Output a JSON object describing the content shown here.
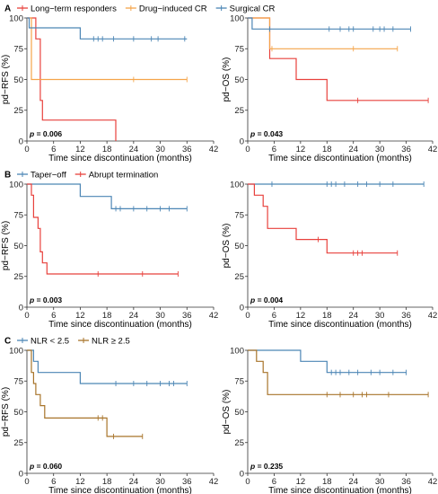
{
  "chart_data": [
    {
      "type": "line",
      "panel": "A",
      "legend": [
        {
          "name": "Long−term responders",
          "color": "#e8413c"
        },
        {
          "name": "Drug−induced CR",
          "color": "#f5a54a"
        },
        {
          "name": "Surgical CR",
          "color": "#4c86b5"
        }
      ],
      "xlabel": "Time since discontinuation (months)",
      "ylabel": "pd−RFS (%)",
      "xticks": [
        0,
        6,
        12,
        18,
        24,
        30,
        36,
        42
      ],
      "yticks": [
        0,
        25,
        50,
        75,
        100
      ],
      "xlim": [
        0,
        42
      ],
      "ylim": [
        0,
        100
      ],
      "p_label": "p",
      "p_value": "= 0.006",
      "series": [
        {
          "name": "Long−term responders",
          "color": "#e8413c",
          "steps": [
            [
              0,
              100
            ],
            [
              2,
              100
            ],
            [
              2,
              83
            ],
            [
              3,
              83
            ],
            [
              3,
              33
            ],
            [
              3.5,
              33
            ],
            [
              3.5,
              17
            ],
            [
              20,
              17
            ],
            [
              20,
              0
            ]
          ],
          "censors": []
        },
        {
          "name": "Drug−induced CR",
          "color": "#f5a54a",
          "steps": [
            [
              0,
              100
            ],
            [
              1,
              100
            ],
            [
              1,
              50
            ],
            [
              36,
              50
            ]
          ],
          "censors": [
            [
              24,
              50
            ],
            [
              36,
              50
            ]
          ]
        },
        {
          "name": "Surgical CR",
          "color": "#4c86b5",
          "steps": [
            [
              0,
              100
            ],
            [
              0.5,
              100
            ],
            [
              0.5,
              92
            ],
            [
              12,
              92
            ],
            [
              12,
              83
            ],
            [
              36,
              83
            ]
          ],
          "censors": [
            [
              15,
              83
            ],
            [
              16,
              83
            ],
            [
              17,
              83
            ],
            [
              19.5,
              83
            ],
            [
              24,
              83
            ],
            [
              28,
              83
            ],
            [
              29.5,
              83
            ],
            [
              35.5,
              83
            ]
          ]
        }
      ]
    },
    {
      "type": "line",
      "panel": "",
      "legend": [],
      "xlabel": "Time since discontinuation (months)",
      "ylabel": "pd−OS (%)",
      "xticks": [
        0,
        6,
        12,
        18,
        24,
        30,
        36,
        42
      ],
      "yticks": [
        0,
        25,
        50,
        75,
        100
      ],
      "xlim": [
        0,
        42
      ],
      "ylim": [
        0,
        100
      ],
      "p_label": "p",
      "p_value": "= 0.043",
      "series": [
        {
          "name": "Long−term responders",
          "color": "#e8413c",
          "steps": [
            [
              0,
              100
            ],
            [
              5,
              100
            ],
            [
              5,
              67
            ],
            [
              11,
              67
            ],
            [
              11,
              50
            ],
            [
              18,
              50
            ],
            [
              18,
              33
            ],
            [
              41,
              33
            ]
          ],
          "censors": [
            [
              25,
              33
            ],
            [
              41,
              33
            ]
          ]
        },
        {
          "name": "Drug−induced CR",
          "color": "#f5a54a",
          "steps": [
            [
              0,
              100
            ],
            [
              5,
              100
            ],
            [
              5,
              75
            ],
            [
              34,
              75
            ]
          ],
          "censors": [
            [
              5.5,
              75
            ],
            [
              24,
              75
            ],
            [
              34,
              75
            ]
          ]
        },
        {
          "name": "Surgical CR",
          "color": "#4c86b5",
          "steps": [
            [
              0,
              100
            ],
            [
              1,
              100
            ],
            [
              1,
              91
            ],
            [
              37,
              91
            ]
          ],
          "censors": [
            [
              5,
              91
            ],
            [
              18.5,
              91
            ],
            [
              21,
              91
            ],
            [
              23,
              91
            ],
            [
              24,
              91
            ],
            [
              28.5,
              91
            ],
            [
              30,
              91
            ],
            [
              31,
              91
            ],
            [
              33,
              91
            ],
            [
              37,
              91
            ]
          ]
        }
      ]
    },
    {
      "type": "line",
      "panel": "B",
      "legend": [
        {
          "name": "Taper−off",
          "color": "#4c86b5"
        },
        {
          "name": "Abrupt termination",
          "color": "#e8413c"
        }
      ],
      "xlabel": "Time since discontinuation (months)",
      "ylabel": "pd−RFS (%)",
      "xticks": [
        0,
        6,
        12,
        18,
        24,
        30,
        36,
        42
      ],
      "yticks": [
        0,
        25,
        50,
        75,
        100
      ],
      "xlim": [
        0,
        42
      ],
      "ylim": [
        0,
        100
      ],
      "p_label": "p",
      "p_value": "= 0.003",
      "series": [
        {
          "name": "Taper−off",
          "color": "#4c86b5",
          "steps": [
            [
              0,
              100
            ],
            [
              12,
              100
            ],
            [
              12,
              90
            ],
            [
              19,
              90
            ],
            [
              19,
              80
            ],
            [
              36,
              80
            ]
          ],
          "censors": [
            [
              20,
              80
            ],
            [
              21,
              80
            ],
            [
              24,
              80
            ],
            [
              27,
              80
            ],
            [
              30,
              80
            ],
            [
              32,
              80
            ],
            [
              36,
              80
            ]
          ]
        },
        {
          "name": "Abrupt termination",
          "color": "#e8413c",
          "steps": [
            [
              0,
              100
            ],
            [
              1,
              100
            ],
            [
              1,
              91
            ],
            [
              1.5,
              91
            ],
            [
              1.5,
              73
            ],
            [
              2.5,
              73
            ],
            [
              2.5,
              64
            ],
            [
              3,
              64
            ],
            [
              3,
              45
            ],
            [
              3.5,
              45
            ],
            [
              3.5,
              36
            ],
            [
              4.5,
              36
            ],
            [
              4.5,
              27
            ],
            [
              34,
              27
            ]
          ],
          "censors": [
            [
              16,
              27
            ],
            [
              26,
              27
            ],
            [
              34,
              27
            ]
          ]
        }
      ]
    },
    {
      "type": "line",
      "panel": "",
      "legend": [],
      "xlabel": "Time since discontinuation (months)",
      "ylabel": "pd−OS (%)",
      "xticks": [
        0,
        6,
        12,
        18,
        24,
        30,
        36,
        42
      ],
      "yticks": [
        0,
        25,
        50,
        75,
        100
      ],
      "xlim": [
        0,
        42
      ],
      "ylim": [
        0,
        100
      ],
      "p_label": "p",
      "p_value": "= 0.004",
      "series": [
        {
          "name": "Taper−off",
          "color": "#4c86b5",
          "steps": [
            [
              0,
              100
            ],
            [
              40,
              100
            ]
          ],
          "censors": [
            [
              5.5,
              100
            ],
            [
              18,
              100
            ],
            [
              19,
              100
            ],
            [
              20,
              100
            ],
            [
              22,
              100
            ],
            [
              25,
              100
            ],
            [
              27,
              100
            ],
            [
              30,
              100
            ],
            [
              33,
              100
            ],
            [
              40,
              100
            ]
          ]
        },
        {
          "name": "Abrupt termination",
          "color": "#e8413c",
          "steps": [
            [
              0,
              100
            ],
            [
              1.5,
              100
            ],
            [
              1.5,
              91
            ],
            [
              3.5,
              91
            ],
            [
              3.5,
              82
            ],
            [
              4.5,
              82
            ],
            [
              4.5,
              64
            ],
            [
              11,
              64
            ],
            [
              11,
              55
            ],
            [
              18,
              55
            ],
            [
              18,
              44
            ],
            [
              34,
              44
            ]
          ],
          "censors": [
            [
              16,
              55
            ],
            [
              24,
              44
            ],
            [
              25,
              44
            ],
            [
              26,
              44
            ],
            [
              34,
              44
            ]
          ]
        }
      ]
    },
    {
      "type": "line",
      "panel": "C",
      "legend": [
        {
          "name": "NLR < 2.5",
          "color": "#4c86b5"
        },
        {
          "name": "NLR ≥ 2.5",
          "color": "#a8742a"
        }
      ],
      "xlabel": "Time since discontinuation (months)",
      "ylabel": "pd−RFS (%)",
      "xticks": [
        0,
        6,
        12,
        18,
        24,
        30,
        36,
        42
      ],
      "yticks": [
        0,
        25,
        50,
        75,
        100
      ],
      "xlim": [
        0,
        42
      ],
      "ylim": [
        0,
        100
      ],
      "p_label": "p",
      "p_value": "= 0.060",
      "series": [
        {
          "name": "NLR < 2.5",
          "color": "#4c86b5",
          "steps": [
            [
              0,
              100
            ],
            [
              1.5,
              100
            ],
            [
              1.5,
              91
            ],
            [
              2.5,
              91
            ],
            [
              2.5,
              82
            ],
            [
              12,
              82
            ],
            [
              12,
              73
            ],
            [
              36,
              73
            ]
          ],
          "censors": [
            [
              20,
              73
            ],
            [
              24,
              73
            ],
            [
              27,
              73
            ],
            [
              30,
              73
            ],
            [
              32,
              73
            ],
            [
              33,
              73
            ],
            [
              36,
              73
            ]
          ]
        },
        {
          "name": "NLR ≥ 2.5",
          "color": "#a8742a",
          "steps": [
            [
              0,
              100
            ],
            [
              1,
              100
            ],
            [
              1,
              82
            ],
            [
              1.5,
              82
            ],
            [
              1.5,
              73
            ],
            [
              2,
              73
            ],
            [
              2,
              64
            ],
            [
              3,
              64
            ],
            [
              3,
              55
            ],
            [
              4,
              55
            ],
            [
              4,
              45
            ],
            [
              18,
              45
            ],
            [
              18,
              30
            ],
            [
              26,
              30
            ]
          ],
          "censors": [
            [
              16,
              45
            ],
            [
              17,
              45
            ],
            [
              19.5,
              30
            ],
            [
              26,
              30
            ]
          ]
        }
      ]
    },
    {
      "type": "line",
      "panel": "",
      "legend": [],
      "xlabel": "Time since discontinuation (months)",
      "ylabel": "pd−OS (%)",
      "xticks": [
        0,
        6,
        12,
        18,
        24,
        30,
        36,
        42
      ],
      "yticks": [
        0,
        25,
        50,
        75,
        100
      ],
      "xlim": [
        0,
        42
      ],
      "ylim": [
        0,
        100
      ],
      "p_label": "p",
      "p_value": "= 0.235",
      "series": [
        {
          "name": "NLR < 2.5",
          "color": "#4c86b5",
          "steps": [
            [
              0,
              100
            ],
            [
              12,
              100
            ],
            [
              12,
              91
            ],
            [
              18,
              91
            ],
            [
              18,
              82
            ],
            [
              36,
              82
            ]
          ],
          "censors": [
            [
              19,
              82
            ],
            [
              20,
              82
            ],
            [
              21,
              82
            ],
            [
              23,
              82
            ],
            [
              25,
              82
            ],
            [
              28,
              82
            ],
            [
              30,
              82
            ],
            [
              33,
              82
            ],
            [
              36,
              82
            ]
          ]
        },
        {
          "name": "NLR ≥ 2.5",
          "color": "#a8742a",
          "steps": [
            [
              0,
              100
            ],
            [
              2,
              100
            ],
            [
              2,
              91
            ],
            [
              3.5,
              91
            ],
            [
              3.5,
              82
            ],
            [
              4.5,
              82
            ],
            [
              4.5,
              64
            ],
            [
              41,
              64
            ]
          ],
          "censors": [
            [
              18,
              64
            ],
            [
              21,
              64
            ],
            [
              24,
              64
            ],
            [
              26,
              64
            ],
            [
              27,
              64
            ],
            [
              32,
              64
            ],
            [
              41,
              64
            ]
          ]
        }
      ]
    }
  ]
}
